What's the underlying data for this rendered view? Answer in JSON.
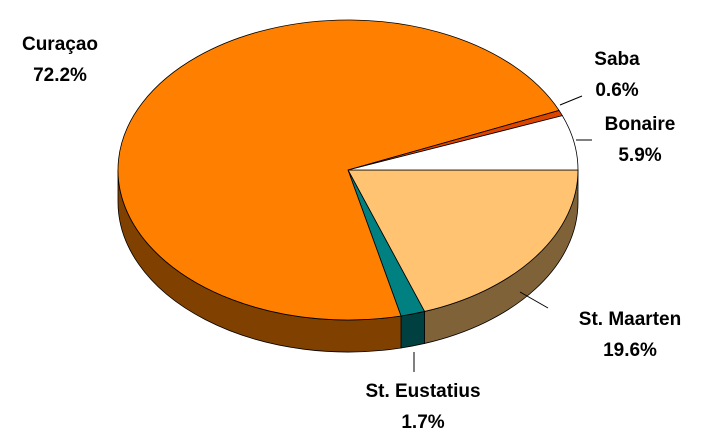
{
  "chart_data": {
    "type": "pie",
    "categories": [
      "St. Maarten",
      "St. Eustatius",
      "Curaçao",
      "Saba",
      "Bonaire"
    ],
    "values": [
      19.6,
      1.7,
      72.2,
      0.6,
      5.9
    ],
    "value_labels": [
      "19.6%",
      "1.7%",
      "72.2%",
      "0.6%",
      "5.9%"
    ],
    "colors": [
      "#ffc372",
      "#008080",
      "#ff8000",
      "#dd4400",
      "#ffffff"
    ]
  }
}
